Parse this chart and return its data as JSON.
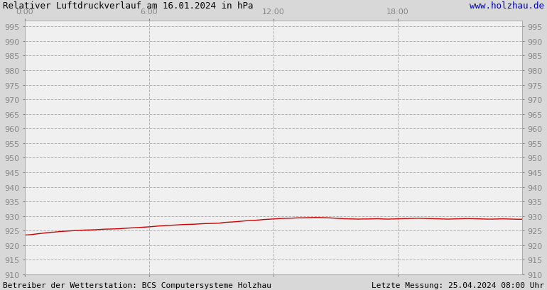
{
  "title": "Relativer Luftdruckverlauf am 16.01.2024 in hPa",
  "url_text": "www.holzhau.de",
  "footer_left": "Betreiber der Wetterstation: BCS Computersysteme Holzhau",
  "footer_right": "Letzte Messung: 25.04.2024 08:00 Uhr",
  "bg_color": "#d8d8d8",
  "plot_bg_color": "#f0f0f0",
  "line_color": "#cc0000",
  "grid_color": "#aaaaaa",
  "title_color": "#000000",
  "url_color": "#0000bb",
  "tick_label_color": "#888888",
  "ylim": [
    910,
    997
  ],
  "ytick_interval": 5,
  "xtick_labels": [
    "0:00",
    "6:00",
    "12:00",
    "18:00"
  ],
  "xtick_positions": [
    0,
    0.25,
    0.5,
    0.75
  ],
  "pressure_data_x": [
    0.0,
    0.01,
    0.02,
    0.03,
    0.04,
    0.05,
    0.06,
    0.07,
    0.08,
    0.09,
    0.1,
    0.11,
    0.12,
    0.13,
    0.14,
    0.15,
    0.16,
    0.17,
    0.18,
    0.19,
    0.2,
    0.21,
    0.22,
    0.23,
    0.24,
    0.25,
    0.26,
    0.27,
    0.28,
    0.29,
    0.3,
    0.31,
    0.32,
    0.33,
    0.34,
    0.35,
    0.36,
    0.37,
    0.38,
    0.39,
    0.4,
    0.41,
    0.42,
    0.43,
    0.44,
    0.45,
    0.46,
    0.47,
    0.48,
    0.49,
    0.5,
    0.51,
    0.52,
    0.53,
    0.54,
    0.55,
    0.56,
    0.57,
    0.58,
    0.59,
    0.6,
    0.61,
    0.62,
    0.63,
    0.64,
    0.65,
    0.66,
    0.67,
    0.68,
    0.69,
    0.7,
    0.71,
    0.72,
    0.73,
    0.74,
    0.75,
    0.76,
    0.77,
    0.78,
    0.79,
    0.8,
    0.81,
    0.82,
    0.83,
    0.84,
    0.85,
    0.86,
    0.87,
    0.88,
    0.89,
    0.9,
    0.91,
    0.92,
    0.93,
    0.94,
    0.95,
    0.96,
    0.97,
    0.98,
    0.99,
    1.0
  ],
  "pressure_data_y": [
    923.5,
    923.6,
    923.8,
    924.0,
    924.2,
    924.4,
    924.5,
    924.7,
    924.8,
    924.9,
    925.0,
    925.1,
    925.2,
    925.25,
    925.3,
    925.4,
    925.5,
    925.55,
    925.6,
    925.65,
    925.8,
    925.9,
    926.0,
    926.1,
    926.2,
    926.3,
    926.45,
    926.6,
    926.7,
    926.8,
    926.9,
    927.0,
    927.1,
    927.15,
    927.2,
    927.3,
    927.4,
    927.45,
    927.5,
    927.55,
    927.8,
    927.9,
    928.0,
    928.15,
    928.3,
    928.45,
    928.5,
    928.65,
    928.8,
    928.9,
    929.0,
    929.1,
    929.2,
    929.25,
    929.3,
    929.4,
    929.4,
    929.45,
    929.5,
    929.5,
    929.45,
    929.4,
    929.3,
    929.2,
    929.1,
    929.05,
    929.0,
    928.95,
    929.0,
    929.0,
    929.05,
    929.1,
    929.0,
    928.95,
    929.0,
    929.05,
    929.1,
    929.15,
    929.2,
    929.25,
    929.2,
    929.15,
    929.1,
    929.05,
    929.0,
    928.95,
    929.0,
    929.05,
    929.1,
    929.15,
    929.1,
    929.05,
    929.0,
    928.95,
    928.95,
    929.0,
    929.05,
    929.0,
    928.95,
    928.9,
    928.9
  ]
}
